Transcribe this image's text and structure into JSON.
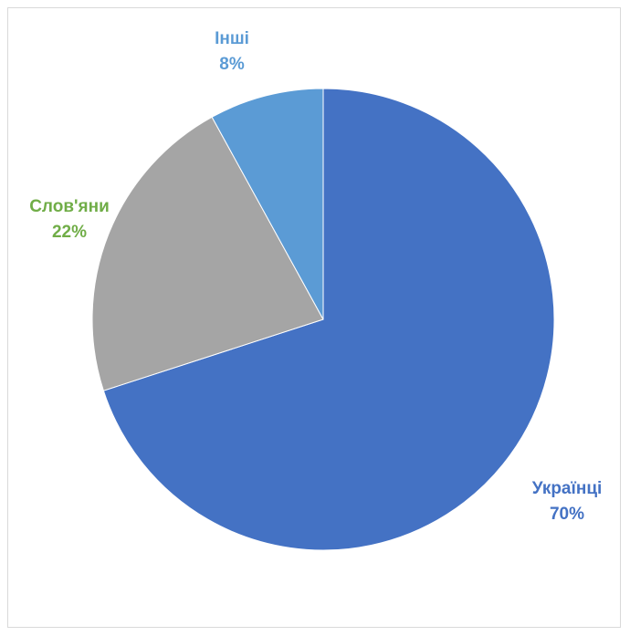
{
  "chart_data": {
    "type": "pie",
    "title": "",
    "slices": [
      {
        "label": "Українці",
        "value": 70,
        "percent_label": "70%",
        "color": "#4472C4",
        "label_color": "#4472C4"
      },
      {
        "label": "Слов'яни",
        "value": 22,
        "percent_label": "22%",
        "color": "#A5A5A5",
        "label_color": "#70AD47"
      },
      {
        "label": "Інші",
        "value": 8,
        "percent_label": "8%",
        "color": "#5B9BD5",
        "label_color": "#5B9BD5"
      }
    ],
    "start_angle_deg": 0,
    "direction": "clockwise",
    "legend": "none"
  }
}
